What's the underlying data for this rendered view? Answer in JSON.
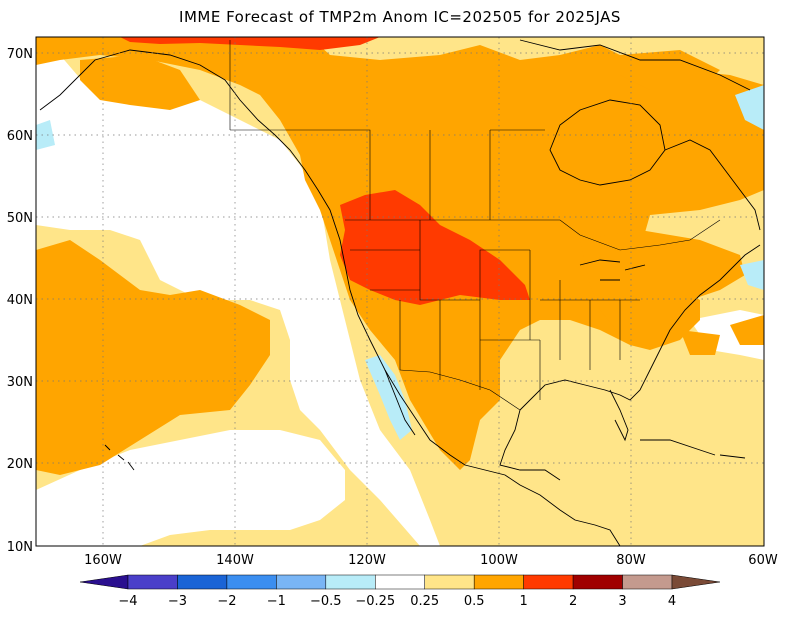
{
  "title": "IMME Forecast of TMP2m Anom IC=202505 for 2025JAS",
  "lat_labels": [
    "70N",
    "60N",
    "50N",
    "40N",
    "30N",
    "20N",
    "10N"
  ],
  "lon_labels": [
    "160W",
    "140W",
    "120W",
    "100W",
    "80W",
    "60W"
  ],
  "colorbar": {
    "labels": [
      "-4",
      "-3",
      "-2",
      "-1",
      "-0.5",
      "-0.25",
      "0.25",
      "0.5",
      "1",
      "2",
      "3",
      "4"
    ],
    "colors": [
      "#2a0f8f",
      "#4a3fc9",
      "#1a64d6",
      "#3b8ef0",
      "#79b5f5",
      "#b8ecf8",
      "#ffffff",
      "#ffe589",
      "#ffa500",
      "#ff3a00",
      "#a00000",
      "#c49a8e",
      "#7a4a36"
    ]
  },
  "colors": {
    "light": "#ffe589",
    "medium": "#ffa500",
    "strong": "#ff3a00",
    "cool": "#b8ecf8"
  }
}
